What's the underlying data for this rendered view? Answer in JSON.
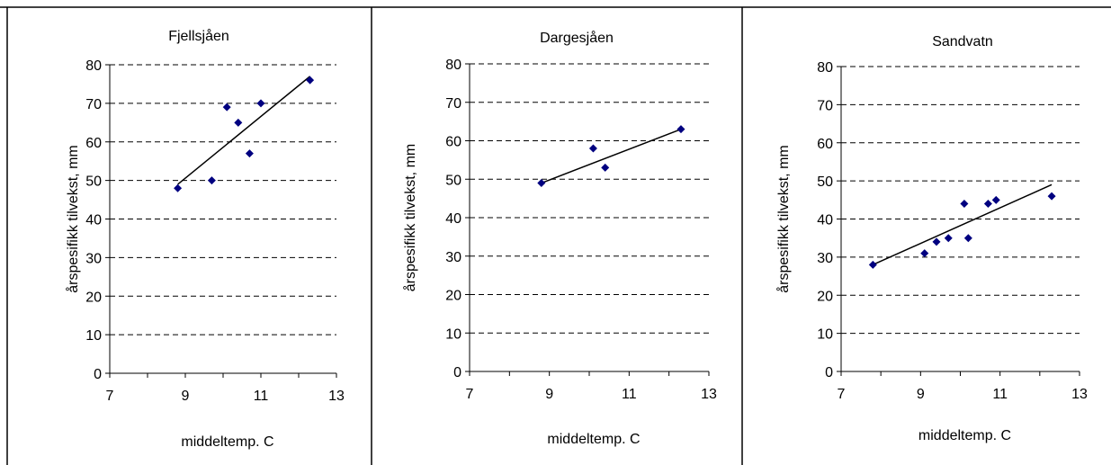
{
  "chart_data": [
    {
      "type": "scatter",
      "title": "Fjellsjåen",
      "xlabel": "middeltemp. C",
      "ylabel": "årspesifikk tilvekst, mm",
      "xlim": [
        7,
        13
      ],
      "ylim": [
        0,
        80
      ],
      "xticks": [
        "7",
        "9",
        "11",
        "13"
      ],
      "yticks": [
        "0",
        "10",
        "20",
        "30",
        "40",
        "50",
        "60",
        "70",
        "80"
      ],
      "grid": "horizontal dashed",
      "points": [
        [
          8.8,
          48
        ],
        [
          9.7,
          50
        ],
        [
          10.1,
          69
        ],
        [
          10.4,
          65
        ],
        [
          10.7,
          57
        ],
        [
          11.0,
          70
        ],
        [
          12.3,
          76
        ]
      ],
      "trendline": [
        [
          8.8,
          49
        ],
        [
          12.3,
          77
        ]
      ],
      "marker_color": "#000080"
    },
    {
      "type": "scatter",
      "title": "Dargesjåen",
      "xlabel": "middeltemp. C",
      "ylabel": "årspesifikk tilvekst, mm",
      "xlim": [
        7,
        13
      ],
      "ylim": [
        0,
        80
      ],
      "xticks": [
        "7",
        "9",
        "11",
        "13"
      ],
      "yticks": [
        "0",
        "10",
        "20",
        "30",
        "40",
        "50",
        "60",
        "70",
        "80"
      ],
      "grid": "horizontal dashed",
      "points": [
        [
          8.8,
          49
        ],
        [
          10.1,
          58
        ],
        [
          10.4,
          53
        ],
        [
          12.3,
          63
        ]
      ],
      "trendline": [
        [
          8.8,
          49
        ],
        [
          12.3,
          63
        ]
      ],
      "marker_color": "#000080"
    },
    {
      "type": "scatter",
      "title": "Sandvatn",
      "xlabel": "middeltemp. C",
      "ylabel": "årspesifikk tilvekst, mm",
      "xlim": [
        7,
        13
      ],
      "ylim": [
        0,
        80
      ],
      "xticks": [
        "7",
        "9",
        "11",
        "13"
      ],
      "yticks": [
        "0",
        "10",
        "20",
        "30",
        "40",
        "50",
        "60",
        "70",
        "80"
      ],
      "grid": "horizontal dashed",
      "points": [
        [
          7.8,
          28
        ],
        [
          9.1,
          31
        ],
        [
          9.4,
          34
        ],
        [
          9.7,
          35
        ],
        [
          10.1,
          44
        ],
        [
          10.2,
          35
        ],
        [
          10.7,
          44
        ],
        [
          10.9,
          45
        ],
        [
          12.3,
          46
        ]
      ],
      "trendline": [
        [
          7.8,
          28
        ],
        [
          12.3,
          49
        ]
      ],
      "marker_color": "#000080"
    }
  ]
}
